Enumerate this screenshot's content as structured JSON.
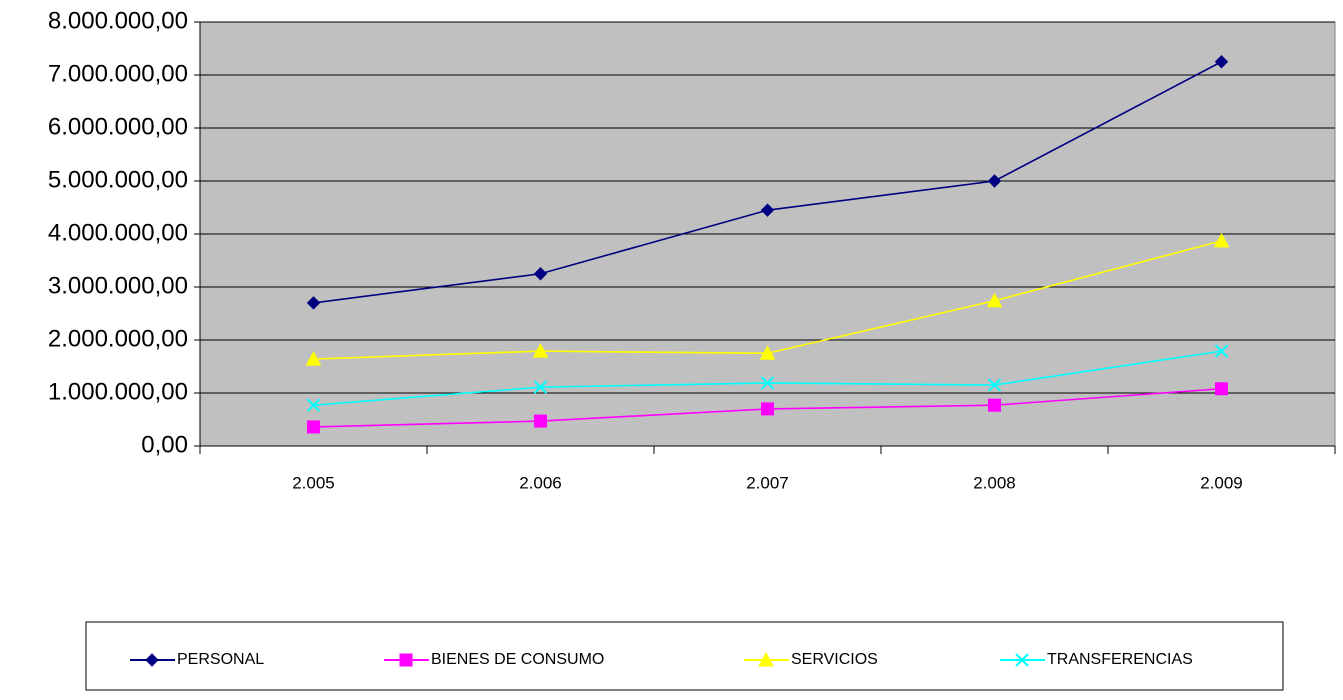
{
  "chart_data": {
    "type": "line",
    "categories": [
      "2.005",
      "2.006",
      "2.007",
      "2.008",
      "2.009"
    ],
    "series": [
      {
        "name": "PERSONAL",
        "color": "#000080",
        "marker": "diamond",
        "values": [
          2700000,
          3250000,
          4450000,
          5000000,
          7250000
        ]
      },
      {
        "name": "BIENES DE CONSUMO",
        "color": "#ff00ff",
        "marker": "square",
        "values": [
          360000,
          470000,
          700000,
          770000,
          1080000
        ]
      },
      {
        "name": "SERVICIOS",
        "color": "#ffff00",
        "marker": "triangle",
        "values": [
          1640000,
          1790000,
          1750000,
          2740000,
          3870000
        ]
      },
      {
        "name": "TRANSFERENCIAS",
        "color": "#00ffff",
        "marker": "x",
        "values": [
          770000,
          1110000,
          1190000,
          1150000,
          1790000
        ]
      }
    ],
    "ylim": [
      0,
      8000000
    ],
    "yticks": [
      {
        "value": 0,
        "label": "0,00"
      },
      {
        "value": 1000000,
        "label": "1.000.000,00"
      },
      {
        "value": 2000000,
        "label": "2.000.000,00"
      },
      {
        "value": 3000000,
        "label": "3.000.000,00"
      },
      {
        "value": 4000000,
        "label": "4.000.000,00"
      },
      {
        "value": 5000000,
        "label": "5.000.000,00"
      },
      {
        "value": 6000000,
        "label": "6.000.000,00"
      },
      {
        "value": 7000000,
        "label": "7.000.000,00"
      },
      {
        "value": 8000000,
        "label": "8.000.000,00"
      }
    ],
    "grid": true,
    "plot_background": "#c0c0c0",
    "legend": "bottom"
  }
}
